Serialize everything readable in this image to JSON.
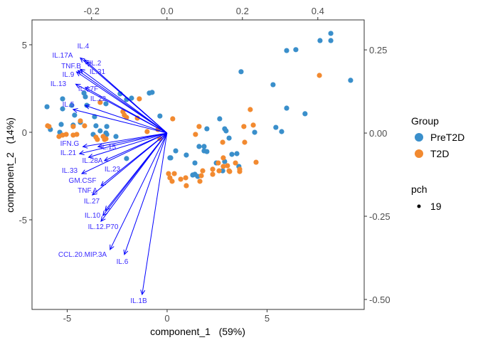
{
  "chart_data": {
    "type": "scatter",
    "subtype": "biplot",
    "xlabel": "component_1   (59%)",
    "ylabel": "component_2   (14%)",
    "xlim": [
      -6.76,
      9.86
    ],
    "ylim": [
      -10.12,
      6.42
    ],
    "x_ticks": [
      -5,
      0,
      5
    ],
    "y_ticks": [
      -5,
      0,
      5
    ],
    "secondary_xlim": [
      -0.358,
      0.523
    ],
    "secondary_ylim": [
      -0.53,
      0.34
    ],
    "secondary_x_ticks": [
      -0.2,
      0.0,
      0.2,
      0.4
    ],
    "secondary_y_ticks": [
      0.25,
      0.0,
      -0.25,
      -0.5
    ],
    "x_tick_labels": [
      "-5",
      "0",
      "5"
    ],
    "y_tick_labels": [
      "-5",
      "0",
      "5"
    ],
    "secondary_x_tick_labels": [
      "-0.2",
      "0.0",
      "0.2",
      "0.4"
    ],
    "secondary_y_tick_labels": [
      "0.25",
      "0.00",
      "-0.25",
      "-0.50"
    ],
    "grid": false,
    "legend": {
      "position": "right",
      "group_title": "Group",
      "pch_title": "pch",
      "pch_value": "19"
    },
    "series": [
      {
        "name": "PreT2D",
        "color": "#3a8fcb",
        "points": [
          [
            8.19,
            5.65
          ],
          [
            7.65,
            5.24
          ],
          [
            8.19,
            5.24
          ],
          [
            5.98,
            4.67
          ],
          [
            6.44,
            4.72
          ],
          [
            3.7,
            3.46
          ],
          [
            5.3,
            2.72
          ],
          [
            9.18,
            2.97
          ],
          [
            5.98,
            1.38
          ],
          [
            6.9,
            1.06
          ],
          [
            2.63,
            0.77
          ],
          [
            1.99,
            0.2
          ],
          [
            2.88,
            0.2
          ],
          [
            2.95,
            0.08
          ],
          [
            4.38,
            0.0
          ],
          [
            5.44,
            0.28
          ],
          [
            5.73,
            0.04
          ],
          [
            3.1,
            -0.33
          ],
          [
            1.6,
            -0.81
          ],
          [
            1.85,
            -0.81
          ],
          [
            1.85,
            -1.06
          ],
          [
            1.99,
            -1.1
          ],
          [
            0.43,
            -1.06
          ],
          [
            0.18,
            -1.46
          ],
          [
            0.96,
            -1.3
          ],
          [
            1.39,
            -1.75
          ],
          [
            3.24,
            -1.26
          ],
          [
            3.49,
            -1.22
          ],
          [
            2.46,
            -1.75
          ],
          [
            2.88,
            -1.67
          ],
          [
            3.59,
            -1.95
          ],
          [
            2.78,
            -2.2
          ],
          [
            1.28,
            -2.44
          ],
          [
            1.39,
            -2.4
          ],
          [
            1.53,
            -2.52
          ],
          [
            -0.89,
            2.24
          ],
          [
            -0.75,
            2.28
          ],
          [
            -2.35,
            2.2
          ],
          [
            -2.03,
            1.87
          ],
          [
            -1.78,
            1.95
          ],
          [
            -4.16,
            2.24
          ],
          [
            -4.09,
            2.03
          ],
          [
            -5.23,
            1.91
          ],
          [
            -6.01,
            1.46
          ],
          [
            -5.23,
            1.34
          ],
          [
            -4.77,
            1.54
          ],
          [
            -4.02,
            1.54
          ],
          [
            -3.06,
            1.63
          ],
          [
            -3.63,
            0.89
          ],
          [
            -4.63,
            0.98
          ],
          [
            -5.3,
            0.45
          ],
          [
            -4.34,
            0.57
          ],
          [
            -4.7,
            0.41
          ],
          [
            -3.56,
            0.37
          ],
          [
            -3.02,
            0.33
          ],
          [
            -5.84,
            0.16
          ],
          [
            -5.37,
            0.0
          ],
          [
            -3.7,
            -0.12
          ],
          [
            -3.35,
            0.08
          ],
          [
            -3.06,
            -0.04
          ],
          [
            -3.02,
            -0.12
          ],
          [
            -2.56,
            -0.24
          ],
          [
            -2.03,
            -1.5
          ],
          [
            0.14,
            -1.46
          ],
          [
            -0.36,
            0.93
          ]
        ]
      },
      {
        "name": "T2D",
        "color": "#f28a30",
        "points": [
          [
            7.62,
            3.25
          ],
          [
            4.16,
            1.3
          ],
          [
            0.28,
            0.77
          ],
          [
            1.6,
            0.33
          ],
          [
            1.42,
            -0.12
          ],
          [
            3.84,
            0.33
          ],
          [
            4.31,
            0.41
          ],
          [
            2.78,
            -0.57
          ],
          [
            3.88,
            -0.57
          ],
          [
            2.81,
            -1.46
          ],
          [
            4.45,
            -1.71
          ],
          [
            3.42,
            -1.75
          ],
          [
            2.56,
            -1.75
          ],
          [
            0.07,
            -2.36
          ],
          [
            0.36,
            -2.36
          ],
          [
            0.14,
            -2.6
          ],
          [
            0.25,
            -2.8
          ],
          [
            0.68,
            -2.68
          ],
          [
            0.93,
            -2.6
          ],
          [
            0.96,
            -3.05
          ],
          [
            1.64,
            -2.8
          ],
          [
            1.71,
            -2.48
          ],
          [
            1.78,
            -2.2
          ],
          [
            2.28,
            -2.11
          ],
          [
            2.28,
            -2.4
          ],
          [
            2.6,
            -2.2
          ],
          [
            2.81,
            -1.95
          ],
          [
            3.02,
            -1.91
          ],
          [
            3.1,
            -2.2
          ],
          [
            3.13,
            -2.24
          ],
          [
            3.63,
            -2.11
          ],
          [
            3.63,
            -2.24
          ],
          [
            -1.39,
            1.91
          ],
          [
            -3.35,
            1.71
          ],
          [
            -2.21,
            1.18
          ],
          [
            -2.14,
            0.98
          ],
          [
            -2.03,
            0.85
          ],
          [
            -1.49,
            0.81
          ],
          [
            -5.98,
            0.37
          ],
          [
            -5.91,
            0.33
          ],
          [
            -4.34,
            0.65
          ],
          [
            -4.13,
            0.37
          ],
          [
            -4.7,
            0.33
          ],
          [
            -5.41,
            -0.24
          ],
          [
            -5.23,
            -0.16
          ],
          [
            -5.05,
            -0.12
          ],
          [
            -4.7,
            -0.16
          ],
          [
            -4.52,
            -0.12
          ],
          [
            -3.56,
            -0.28
          ],
          [
            -3.49,
            -0.41
          ],
          [
            -3.2,
            -0.24
          ],
          [
            -3.13,
            -0.41
          ],
          [
            -3.06,
            -0.37
          ],
          [
            -1.0,
            0.04
          ],
          [
            -0.46,
            0.16
          ],
          [
            -0.36,
            -0.37
          ]
        ]
      }
    ],
    "loadings_color": "#0000ff",
    "loading_label_color": "#3a2bff",
    "loadings": [
      {
        "name": "IL.17A",
        "x": -0.23,
        "y": 0.226
      },
      {
        "name": "IL.4",
        "x": -0.219,
        "y": 0.22
      },
      {
        "name": "IL.2",
        "x": -0.213,
        "y": 0.214
      },
      {
        "name": "TNF.B",
        "x": -0.236,
        "y": 0.188
      },
      {
        "name": "IL.31",
        "x": -0.23,
        "y": 0.192
      },
      {
        "name": "IL.9",
        "x": -0.24,
        "y": 0.184
      },
      {
        "name": "IL.13",
        "x": -0.242,
        "y": 0.147
      },
      {
        "name": "IL.17F",
        "x": -0.217,
        "y": 0.137
      },
      {
        "name": "IL.22",
        "x": -0.217,
        "y": 0.083
      },
      {
        "name": "IL.5",
        "x": -0.249,
        "y": 0.071
      },
      {
        "name": "IFN.G",
        "x": -0.223,
        "y": -0.041
      },
      {
        "name": "IL.15",
        "x": -0.183,
        "y": -0.041
      },
      {
        "name": "IL.21",
        "x": -0.232,
        "y": -0.062
      },
      {
        "name": "IL.28A",
        "x": -0.208,
        "y": -0.073
      },
      {
        "name": "IL.23",
        "x": -0.166,
        "y": -0.083
      },
      {
        "name": "IL.33",
        "x": -0.226,
        "y": -0.122
      },
      {
        "name": "GM.CSF",
        "x": -0.175,
        "y": -0.158
      },
      {
        "name": "TNF.A",
        "x": -0.198,
        "y": -0.186
      },
      {
        "name": "IL.27",
        "x": -0.164,
        "y": -0.233
      },
      {
        "name": "IL.10",
        "x": -0.175,
        "y": -0.265
      },
      {
        "name": "IL.12.P70",
        "x": -0.17,
        "y": -0.248
      },
      {
        "name": "CCL.20.MIP.3A",
        "x": -0.151,
        "y": -0.35
      },
      {
        "name": "IL.6",
        "x": -0.113,
        "y": -0.365
      },
      {
        "name": "IL.1B",
        "x": -0.066,
        "y": -0.485
      }
    ]
  }
}
